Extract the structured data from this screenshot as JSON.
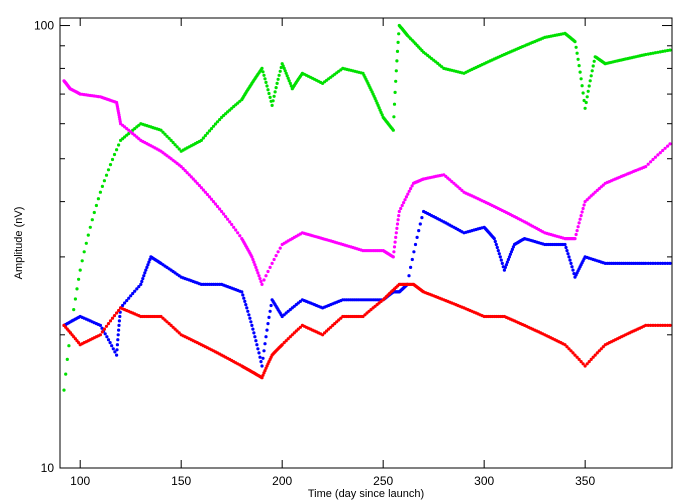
{
  "chart_data": {
    "type": "scatter",
    "title": "",
    "xlabel": "Time (day since launch)",
    "ylabel": "Amplitude (nV)",
    "xlim": [
      90,
      393
    ],
    "ylim": [
      10,
      104
    ],
    "yscale": "log",
    "grid": false,
    "legend": "none",
    "x_ticks": [
      100,
      150,
      200,
      250,
      300,
      350
    ],
    "y_ticks": [
      10,
      100
    ],
    "x_tick_labels": [
      "100",
      "150",
      "200",
      "250",
      "300",
      "350"
    ],
    "y_tick_labels": [
      "10",
      "100"
    ],
    "series": [
      {
        "color": "#00e000",
        "x": [
          92,
          100,
          110,
          120,
          130,
          140,
          150,
          160,
          170,
          180,
          185,
          190,
          195,
          200,
          205,
          210,
          220,
          230,
          240,
          245,
          250,
          255,
          258,
          262,
          270,
          280,
          290,
          300,
          310,
          320,
          330,
          340,
          345,
          350,
          355,
          360,
          370,
          380,
          392
        ],
        "y": [
          15,
          28,
          42,
          55,
          60,
          58,
          52,
          55,
          62,
          68,
          74,
          80,
          66,
          82,
          72,
          78,
          74,
          80,
          78,
          70,
          62,
          58,
          100,
          95,
          87,
          80,
          78,
          82,
          86,
          90,
          94,
          96,
          92,
          65,
          85,
          82,
          84,
          86,
          88
        ]
      },
      {
        "color": "#ff00ff",
        "x": [
          92,
          95,
          100,
          110,
          118,
          120,
          130,
          140,
          150,
          160,
          170,
          180,
          185,
          190,
          200,
          210,
          220,
          230,
          240,
          250,
          255,
          258,
          265,
          270,
          280,
          290,
          300,
          310,
          320,
          330,
          340,
          345,
          350,
          360,
          370,
          380,
          392
        ],
        "y": [
          75,
          72,
          70,
          69,
          67,
          60,
          55,
          52,
          48,
          43,
          38,
          33,
          30,
          26,
          32,
          34,
          33,
          32,
          31,
          31,
          30,
          38,
          44,
          45,
          46,
          42,
          40,
          38,
          36,
          34,
          33,
          33,
          40,
          44,
          46,
          48,
          54
        ]
      },
      {
        "color": "#0000ff",
        "x": [
          92,
          100,
          110,
          118,
          120,
          130,
          135,
          140,
          150,
          160,
          170,
          180,
          185,
          190,
          195,
          200,
          210,
          220,
          230,
          240,
          250,
          255,
          258,
          262,
          270,
          280,
          290,
          300,
          305,
          310,
          315,
          320,
          330,
          340,
          345,
          350,
          360,
          370,
          380,
          392
        ],
        "y": [
          21,
          22,
          21,
          18,
          23,
          26,
          30,
          29,
          27,
          26,
          26,
          25,
          21,
          17,
          24,
          22,
          24,
          23,
          24,
          24,
          24,
          25,
          25,
          26,
          38,
          36,
          34,
          35,
          33,
          28,
          32,
          33,
          32,
          32,
          27,
          30,
          29,
          29,
          29,
          29
        ]
      },
      {
        "color": "#ff0000",
        "x": [
          92,
          100,
          110,
          120,
          130,
          140,
          150,
          160,
          170,
          180,
          185,
          190,
          195,
          200,
          210,
          220,
          230,
          240,
          250,
          258,
          265,
          270,
          280,
          290,
          300,
          310,
          320,
          330,
          340,
          350,
          360,
          370,
          380,
          392
        ],
        "y": [
          21,
          19,
          20,
          23,
          22,
          22,
          20,
          19,
          18,
          17,
          16.5,
          16,
          18,
          19,
          21,
          20,
          22,
          22,
          24,
          26,
          26,
          25,
          24,
          23,
          22,
          22,
          21,
          20,
          19,
          17,
          19,
          20,
          21,
          21
        ]
      }
    ]
  }
}
